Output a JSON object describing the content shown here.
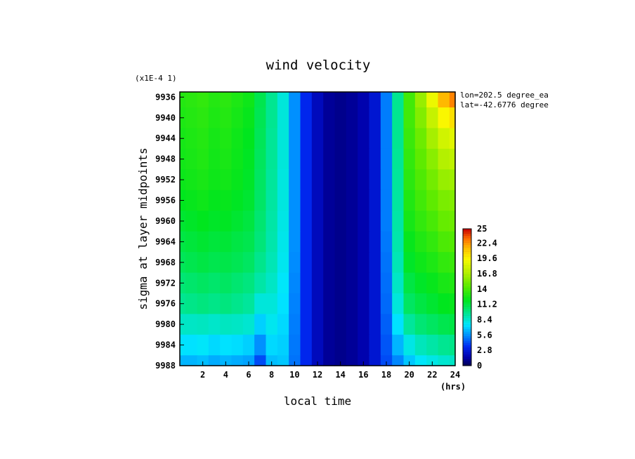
{
  "chart_data": {
    "type": "heatmap",
    "title": "wind velocity",
    "xlabel": "local time",
    "ylabel": "sigma at layer midpoints",
    "x_units": "(hrs)",
    "y_scale_note": "(x1E-4 1)",
    "annotations": [
      "lon=202.5 degree_ea",
      "lat=-42.6776 degree"
    ],
    "xlim": [
      0,
      24
    ],
    "ylim": [
      9988,
      9935
    ],
    "x_ticks": [
      2,
      4,
      6,
      8,
      10,
      12,
      14,
      16,
      18,
      20,
      22,
      24
    ],
    "y_ticks": [
      9936,
      9940,
      9944,
      9948,
      9952,
      9956,
      9960,
      9964,
      9968,
      9972,
      9976,
      9980,
      9984,
      9988
    ],
    "x": [
      0,
      1,
      2,
      3,
      4,
      5,
      6,
      7,
      8,
      9,
      10,
      11,
      12,
      13,
      14,
      15,
      16,
      17,
      18,
      19,
      20,
      21,
      22,
      23,
      24
    ],
    "y": [
      9936,
      9940,
      9944,
      9948,
      9952,
      9956,
      9960,
      9964,
      9968,
      9972,
      9976,
      9980,
      9984,
      9988
    ],
    "z": [
      [
        13.0,
        13.2,
        13.4,
        13.0,
        13.2,
        12.8,
        12.4,
        11.0,
        9.6,
        8.2,
        5.6,
        3.4,
        2.0,
        1.2,
        1.0,
        1.2,
        1.6,
        2.6,
        5.2,
        9.6,
        13.8,
        16.2,
        19.0,
        21.6,
        22.8
      ],
      [
        12.8,
        13.0,
        13.2,
        12.8,
        13.0,
        12.6,
        12.2,
        10.9,
        9.6,
        8.2,
        5.6,
        3.4,
        2.0,
        1.2,
        1.0,
        1.2,
        1.6,
        2.6,
        5.2,
        9.6,
        13.8,
        15.6,
        17.6,
        19.6,
        20.4
      ],
      [
        12.6,
        12.8,
        13.0,
        12.6,
        12.8,
        12.4,
        12.0,
        10.8,
        9.5,
        8.2,
        5.6,
        3.4,
        2.0,
        1.2,
        1.0,
        1.2,
        1.6,
        2.6,
        5.2,
        9.6,
        13.6,
        15.0,
        16.6,
        18.0,
        18.6
      ],
      [
        12.5,
        12.7,
        12.9,
        12.5,
        12.7,
        12.3,
        11.9,
        10.7,
        9.5,
        8.2,
        5.6,
        3.4,
        2.0,
        1.2,
        1.0,
        1.2,
        1.6,
        2.6,
        5.2,
        9.5,
        13.4,
        14.6,
        15.8,
        17.0,
        17.4
      ],
      [
        12.3,
        12.5,
        12.7,
        12.4,
        12.5,
        12.2,
        11.8,
        10.6,
        9.4,
        8.1,
        5.6,
        3.4,
        2.0,
        1.2,
        1.0,
        1.2,
        1.6,
        2.6,
        5.2,
        9.4,
        13.2,
        14.2,
        15.2,
        16.2,
        16.4
      ],
      [
        12.0,
        12.2,
        12.4,
        12.1,
        12.2,
        11.9,
        11.6,
        10.5,
        9.3,
        8.1,
        5.6,
        3.4,
        2.0,
        1.2,
        1.0,
        1.2,
        1.6,
        2.6,
        5.2,
        9.3,
        12.9,
        13.8,
        14.6,
        15.4,
        15.6
      ],
      [
        11.6,
        11.8,
        12.0,
        11.8,
        11.9,
        11.6,
        11.3,
        10.3,
        9.2,
        8.0,
        5.6,
        3.4,
        2.0,
        1.2,
        1.0,
        1.2,
        1.6,
        2.6,
        5.2,
        9.2,
        12.6,
        13.4,
        14.0,
        14.8,
        15.0
      ],
      [
        11.2,
        11.4,
        11.6,
        11.4,
        11.5,
        11.2,
        11.0,
        10.1,
        9.1,
        7.9,
        5.6,
        3.4,
        2.0,
        1.2,
        1.0,
        1.2,
        1.6,
        2.6,
        5.1,
        9.1,
        12.2,
        12.9,
        13.4,
        14.1,
        14.3
      ],
      [
        10.8,
        11.0,
        11.2,
        11.0,
        11.1,
        10.9,
        10.6,
        9.7,
        8.9,
        7.8,
        5.5,
        3.4,
        2.0,
        1.2,
        1.0,
        1.2,
        1.6,
        2.6,
        5.0,
        8.9,
        11.8,
        12.4,
        12.8,
        13.4,
        13.6
      ],
      [
        10.2,
        10.4,
        10.6,
        10.4,
        10.6,
        10.3,
        10.0,
        9.2,
        8.6,
        7.6,
        5.4,
        3.4,
        2.0,
        1.2,
        1.0,
        1.2,
        1.6,
        2.6,
        4.9,
        8.6,
        11.2,
        11.8,
        12.2,
        12.7,
        12.9
      ],
      [
        9.6,
        9.8,
        10.0,
        9.8,
        10.0,
        9.7,
        9.4,
        8.2,
        8.2,
        7.4,
        5.3,
        3.4,
        2.0,
        1.2,
        1.0,
        1.2,
        1.6,
        2.6,
        4.8,
        8.2,
        10.6,
        11.2,
        11.6,
        12.0,
        12.2
      ],
      [
        8.6,
        8.6,
        8.7,
        8.5,
        8.7,
        8.6,
        8.4,
        7.0,
        7.8,
        7.2,
        5.2,
        3.4,
        2.0,
        1.2,
        1.0,
        1.2,
        1.6,
        2.6,
        4.6,
        7.4,
        9.4,
        10.2,
        10.6,
        11.0,
        11.2
      ],
      [
        7.4,
        7.4,
        7.6,
        7.2,
        7.4,
        7.3,
        7.0,
        5.6,
        7.2,
        7.0,
        5.1,
        3.4,
        2.0,
        1.2,
        1.0,
        1.2,
        1.6,
        2.6,
        4.4,
        6.4,
        8.0,
        8.8,
        9.2,
        9.6,
        9.8
      ],
      [
        6.4,
        6.4,
        6.6,
        6.2,
        6.4,
        6.2,
        6.0,
        4.2,
        6.6,
        6.8,
        5.0,
        3.4,
        2.0,
        1.2,
        1.0,
        1.2,
        1.6,
        2.6,
        4.2,
        5.4,
        6.8,
        7.6,
        8.0,
        8.4,
        8.6
      ]
    ],
    "colorbar": {
      "min": 0,
      "max": 25,
      "labels": [
        "25",
        "22.4",
        "19.6",
        "16.8",
        "14",
        "11.2",
        "8.4",
        "5.6",
        "2.8",
        "0"
      ],
      "values": [
        25,
        22.4,
        19.6,
        16.8,
        14,
        11.2,
        8.4,
        5.6,
        2.8,
        0
      ]
    }
  }
}
